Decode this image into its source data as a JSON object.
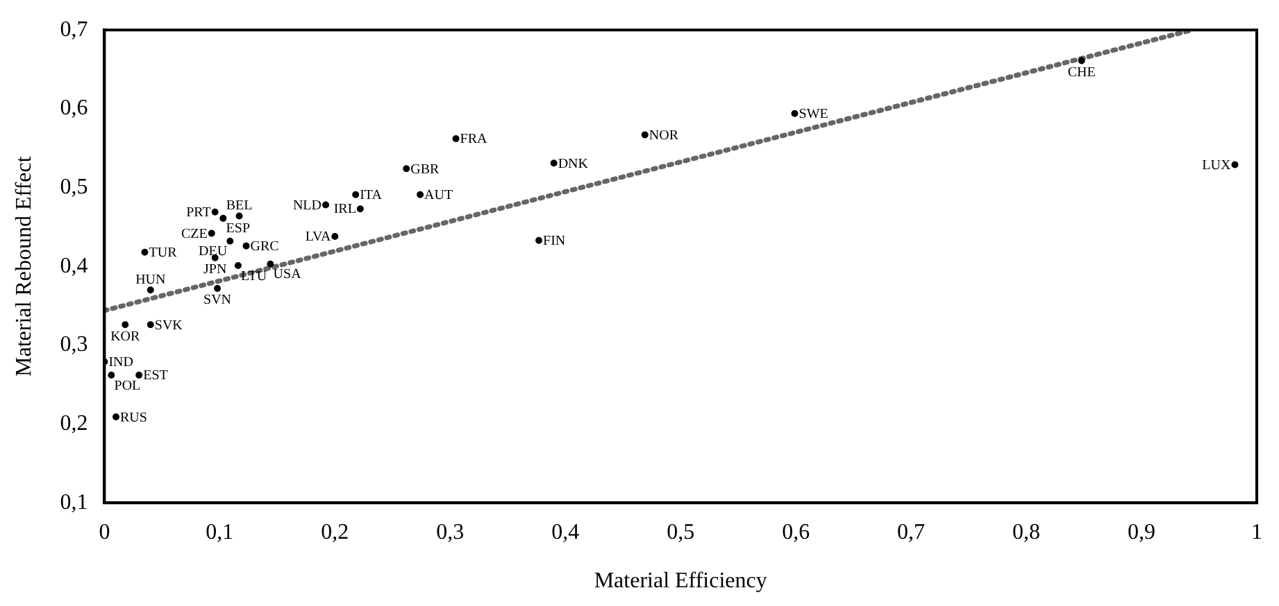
{
  "chart_data": {
    "type": "scatter",
    "xlabel": "Material Efficiency",
    "ylabel": "Material Rebound Effect",
    "xlim": [
      0,
      1
    ],
    "ylim": [
      0.1,
      0.7
    ],
    "xticks": [
      0,
      {
        "value": 0.1,
        "label": "0,1"
      },
      {
        "value": 0.2,
        "label": "0,2"
      },
      {
        "value": 0.3,
        "label": "0,3"
      },
      {
        "value": 0.4,
        "label": "0,4"
      },
      {
        "value": 0.5,
        "label": "0,5"
      },
      {
        "value": 0.6,
        "label": "0,6"
      },
      {
        "value": 0.7,
        "label": "0,7"
      },
      {
        "value": 0.8,
        "label": "0,8"
      },
      {
        "value": 0.9,
        "label": "0,9"
      },
      1
    ],
    "yticks": [
      {
        "value": 0.1,
        "label": "0,1"
      },
      {
        "value": 0.2,
        "label": "0,2"
      },
      {
        "value": 0.3,
        "label": "0,3"
      },
      {
        "value": 0.4,
        "label": "0,4"
      },
      {
        "value": 0.5,
        "label": "0,5"
      },
      {
        "value": 0.6,
        "label": "0,6"
      },
      {
        "value": 0.7,
        "label": "0,7"
      }
    ],
    "grid": false,
    "legend": false,
    "marker": "circle",
    "series": [
      {
        "name": "CHE",
        "color": "#000000",
        "x": [
          0.848
        ],
        "values": [
          0.661
        ]
      },
      {
        "name": "LUX",
        "color": "#000000",
        "x": [
          0.981
        ],
        "values": [
          0.529
        ]
      },
      {
        "name": "SWE",
        "color": "#000000",
        "x": [
          0.599
        ],
        "values": [
          0.594
        ]
      },
      {
        "name": "NOR",
        "color": "#000000",
        "x": [
          0.469
        ],
        "values": [
          0.567
        ]
      },
      {
        "name": "DNK",
        "color": "#000000",
        "x": [
          0.39
        ],
        "values": [
          0.531
        ]
      },
      {
        "name": "FIN",
        "color": "#000000",
        "x": [
          0.377
        ],
        "values": [
          0.433
        ]
      },
      {
        "name": "FRA",
        "color": "#000000",
        "x": [
          0.305
        ],
        "values": [
          0.562
        ]
      },
      {
        "name": "GBR",
        "color": "#000000",
        "x": [
          0.262
        ],
        "values": [
          0.524
        ]
      },
      {
        "name": "AUT",
        "color": "#000000",
        "x": [
          0.274
        ],
        "values": [
          0.491
        ]
      },
      {
        "name": "ITA",
        "color": "#000000",
        "x": [
          0.218
        ],
        "values": [
          0.491
        ]
      },
      {
        "name": "IRL",
        "color": "#000000",
        "x": [
          0.222
        ],
        "values": [
          0.473
        ]
      },
      {
        "name": "NLD",
        "color": "#000000",
        "x": [
          0.192
        ],
        "values": [
          0.478
        ]
      },
      {
        "name": "LVA",
        "color": "#000000",
        "x": [
          0.2
        ],
        "values": [
          0.438
        ]
      },
      {
        "name": "PRT",
        "color": "#000000",
        "x": [
          0.096
        ],
        "values": [
          0.469
        ]
      },
      {
        "name": "ESP",
        "color": "#000000",
        "x": [
          0.103
        ],
        "values": [
          0.461
        ]
      },
      {
        "name": "BEL",
        "color": "#000000",
        "x": [
          0.117
        ],
        "values": [
          0.464
        ]
      },
      {
        "name": "CZE",
        "color": "#000000",
        "x": [
          0.093
        ],
        "values": [
          0.442
        ]
      },
      {
        "name": "DEU",
        "color": "#000000",
        "x": [
          0.109
        ],
        "values": [
          0.432
        ]
      },
      {
        "name": "GRC",
        "color": "#000000",
        "x": [
          0.123
        ],
        "values": [
          0.426
        ]
      },
      {
        "name": "JPN",
        "color": "#000000",
        "x": [
          0.096
        ],
        "values": [
          0.411
        ]
      },
      {
        "name": "LTU",
        "color": "#000000",
        "x": [
          0.116
        ],
        "values": [
          0.401
        ]
      },
      {
        "name": "USA",
        "color": "#000000",
        "x": [
          0.144
        ],
        "values": [
          0.403
        ]
      },
      {
        "name": "SVN",
        "color": "#000000",
        "x": [
          0.098
        ],
        "values": [
          0.372
        ]
      },
      {
        "name": "TUR",
        "color": "#000000",
        "x": [
          0.035
        ],
        "values": [
          0.418
        ]
      },
      {
        "name": "HUN",
        "color": "#000000",
        "x": [
          0.04
        ],
        "values": [
          0.37
        ]
      },
      {
        "name": "KOR",
        "color": "#000000",
        "x": [
          0.018
        ],
        "values": [
          0.326
        ]
      },
      {
        "name": "SVK",
        "color": "#000000",
        "x": [
          0.04
        ],
        "values": [
          0.326
        ]
      },
      {
        "name": "IND",
        "color": "#000000",
        "x": [
          0.0
        ],
        "values": [
          0.279
        ]
      },
      {
        "name": "POL",
        "color": "#000000",
        "x": [
          0.006
        ],
        "values": [
          0.262
        ]
      },
      {
        "name": "EST",
        "color": "#000000",
        "x": [
          0.03
        ],
        "values": [
          0.262
        ]
      },
      {
        "name": "RUS",
        "color": "#000000",
        "x": [
          0.01
        ],
        "values": [
          0.209
        ]
      },
      {
        "type": "line",
        "marker": "none",
        "color": "#666666",
        "line_style": "dotted",
        "x": [
          0,
          0.944
        ],
        "values": [
          0.344,
          0.7
        ]
      }
    ]
  }
}
